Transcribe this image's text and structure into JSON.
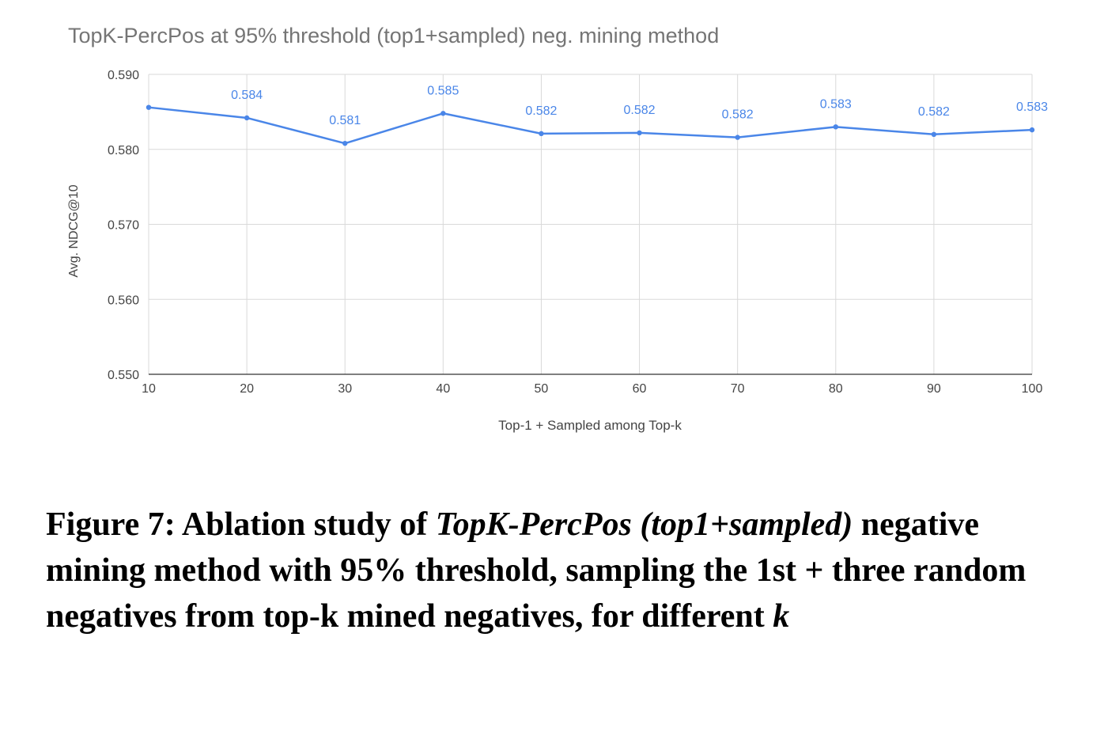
{
  "chart_data": {
    "type": "line",
    "title": "TopK-PercPos at 95% threshold (top1+sampled)  neg. mining method",
    "xlabel": "Top-1 + Sampled among Top-k",
    "ylabel": "Avg. NDCG@10",
    "x": [
      10,
      20,
      30,
      40,
      50,
      60,
      70,
      80,
      90,
      100
    ],
    "series": [
      {
        "values": [
          0.5856,
          0.5842,
          0.5808,
          0.5848,
          0.5821,
          0.5822,
          0.5816,
          0.583,
          0.582,
          0.5826
        ],
        "labels": [
          "",
          "0.584",
          "0.581",
          "0.585",
          "0.582",
          "0.582",
          "0.582",
          "0.583",
          "0.582",
          "0.583"
        ]
      }
    ],
    "xlim": [
      10,
      100
    ],
    "ylim": [
      0.55,
      0.59
    ],
    "yticks": [
      "0.590",
      "0.580",
      "0.570",
      "0.560",
      "0.550"
    ],
    "xticks": [
      "10",
      "20",
      "30",
      "40",
      "50",
      "60",
      "70",
      "80",
      "90",
      "100"
    ],
    "grid": true,
    "line_color": "#4a86e8",
    "label_color": "#4a86e8"
  },
  "caption": {
    "prefix": "Figure 7: Ablation study of ",
    "method": "TopK-PercPos (top1+sampled)",
    "middle": " negative mining method with 95% threshold, sampling the 1st + three random negatives from top-k mined negatives, for different ",
    "k": "k"
  }
}
